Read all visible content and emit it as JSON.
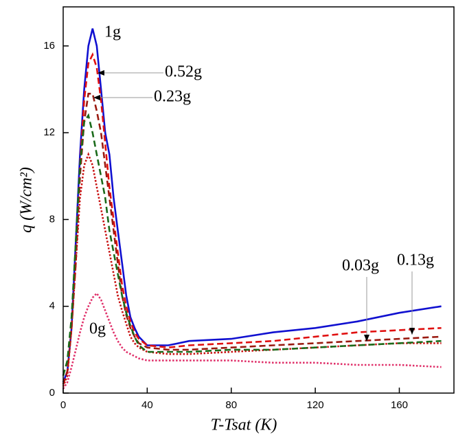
{
  "chart_data": {
    "type": "line",
    "x_label": "T-Tsat (K)",
    "y_label": "q (W/cm²)",
    "x": [
      0,
      2,
      4,
      6,
      8,
      10,
      12,
      14,
      16,
      18,
      20,
      22,
      24,
      26,
      28,
      30,
      32,
      34,
      36,
      40,
      50,
      60,
      80,
      100,
      120,
      140,
      160,
      180
    ],
    "series": [
      {
        "name": "1g",
        "color": "#1010d0",
        "dash": "solid",
        "values": [
          0.5,
          1,
          3,
          7,
          11,
          14,
          16,
          16.8,
          16,
          14,
          12,
          11,
          9,
          7.5,
          6,
          4.5,
          3.5,
          3,
          2.6,
          2.2,
          2.2,
          2.4,
          2.5,
          2.8,
          3,
          3.3,
          3.7,
          4.0
        ]
      },
      {
        "name": "0.52g",
        "color": "#e01010",
        "dash": "dashed",
        "values": [
          0.4,
          1,
          3,
          6.5,
          10.5,
          13.5,
          15.2,
          15.6,
          15,
          13.5,
          11.5,
          9.5,
          8,
          6.5,
          5,
          4,
          3.3,
          2.8,
          2.5,
          2.2,
          2.1,
          2.2,
          2.3,
          2.4,
          2.6,
          2.8,
          2.9,
          3.0
        ]
      },
      {
        "name": "0.23g",
        "color": "#9a1a10",
        "dash": "dashed",
        "values": [
          0.4,
          1,
          3,
          6,
          10,
          12.5,
          13.8,
          13.8,
          13,
          12,
          10.5,
          9,
          7.5,
          6,
          4.5,
          3.6,
          3,
          2.6,
          2.3,
          2.1,
          2.0,
          2.0,
          2.1,
          2.2,
          2.3,
          2.4,
          2.5,
          2.6
        ]
      },
      {
        "name": "0.13g",
        "color": "#c81010",
        "dash": "dotted",
        "values": [
          0.3,
          0.8,
          3,
          6,
          9,
          10.5,
          11,
          10.5,
          9.5,
          8.5,
          7.5,
          6.5,
          5.5,
          4.5,
          3.8,
          3.2,
          2.6,
          2.3,
          2.1,
          1.9,
          1.8,
          1.8,
          1.9,
          2.0,
          2.1,
          2.2,
          2.3,
          2.3
        ]
      },
      {
        "name": "0.03g",
        "color": "#1a6a1a",
        "dash": "dashed",
        "values": [
          0.8,
          1.5,
          3.5,
          7,
          10.5,
          12.5,
          12.8,
          12,
          11,
          10,
          9,
          7.5,
          6.5,
          5.5,
          4.5,
          3.7,
          3.1,
          2.6,
          2.2,
          1.9,
          1.9,
          1.9,
          2.0,
          2.0,
          2.1,
          2.2,
          2.3,
          2.4
        ]
      },
      {
        "name": "0g",
        "color": "#e0306a",
        "dash": "dotted",
        "values": [
          0.2,
          0.5,
          1.2,
          2,
          2.8,
          3.5,
          4,
          4.4,
          4.6,
          4.3,
          3.8,
          3.3,
          2.8,
          2.4,
          2.1,
          1.9,
          1.8,
          1.7,
          1.6,
          1.5,
          1.5,
          1.5,
          1.5,
          1.4,
          1.4,
          1.3,
          1.3,
          1.2
        ]
      }
    ],
    "xlim": [
      0,
      186
    ],
    "ylim": [
      0,
      17.8
    ],
    "xticks": [
      0,
      40,
      80,
      120,
      160
    ],
    "yticks": [
      0,
      4,
      8,
      12,
      16
    ]
  }
}
